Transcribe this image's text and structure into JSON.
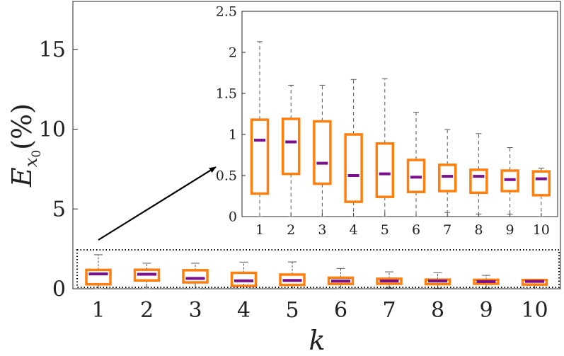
{
  "chart_data": [
    {
      "type": "box",
      "panel": "main",
      "xlabel": "k",
      "ylabel": "E_{x_0} (%)",
      "ylabel_main": "E",
      "ylabel_sub_main": "x",
      "ylabel_sub_sub": "0",
      "ylabel_unit": "(%)",
      "ylim": [
        0,
        18
      ],
      "yticks": [
        0,
        5,
        10,
        15
      ],
      "categories": [
        "1",
        "2",
        "3",
        "4",
        "5",
        "6",
        "7",
        "8",
        "9",
        "10"
      ],
      "colors": {
        "box": "#ff7f0e",
        "median": "#7a0f8c",
        "whisker": "#555555"
      },
      "annotation": "dotted rectangle around the boxes, arrow pointing to zoomed inset"
    },
    {
      "type": "box",
      "panel": "inset",
      "ylim": [
        0,
        2.5
      ],
      "yticks": [
        0,
        0.5,
        1,
        1.5,
        2,
        2.5
      ],
      "categories": [
        "1",
        "2",
        "3",
        "4",
        "5",
        "6",
        "7",
        "8",
        "9",
        "10"
      ],
      "boxes": [
        {
          "k": "1",
          "min": 0.0,
          "q1": 0.28,
          "median": 0.93,
          "q3": 1.18,
          "max": 2.13
        },
        {
          "k": "2",
          "min": 0.0,
          "q1": 0.52,
          "median": 0.91,
          "q3": 1.19,
          "max": 1.6
        },
        {
          "k": "3",
          "min": 0.0,
          "q1": 0.4,
          "median": 0.65,
          "q3": 1.16,
          "max": 1.6
        },
        {
          "k": "4",
          "min": 0.0,
          "q1": 0.18,
          "median": 0.5,
          "q3": 1.0,
          "max": 1.67
        },
        {
          "k": "5",
          "min": 0.0,
          "q1": 0.24,
          "median": 0.52,
          "q3": 0.89,
          "max": 1.68
        },
        {
          "k": "6",
          "min": 0.0,
          "q1": 0.3,
          "median": 0.48,
          "q3": 0.69,
          "max": 1.27
        },
        {
          "k": "7",
          "min": 0.05,
          "q1": 0.31,
          "median": 0.49,
          "q3": 0.63,
          "max": 1.06
        },
        {
          "k": "8",
          "min": 0.03,
          "q1": 0.29,
          "median": 0.49,
          "q3": 0.57,
          "max": 1.01
        },
        {
          "k": "9",
          "min": 0.03,
          "q1": 0.31,
          "median": 0.45,
          "q3": 0.56,
          "max": 0.84
        },
        {
          "k": "10",
          "min": 0.0,
          "q1": 0.26,
          "median": 0.46,
          "q3": 0.55,
          "max": 0.59
        }
      ]
    }
  ]
}
